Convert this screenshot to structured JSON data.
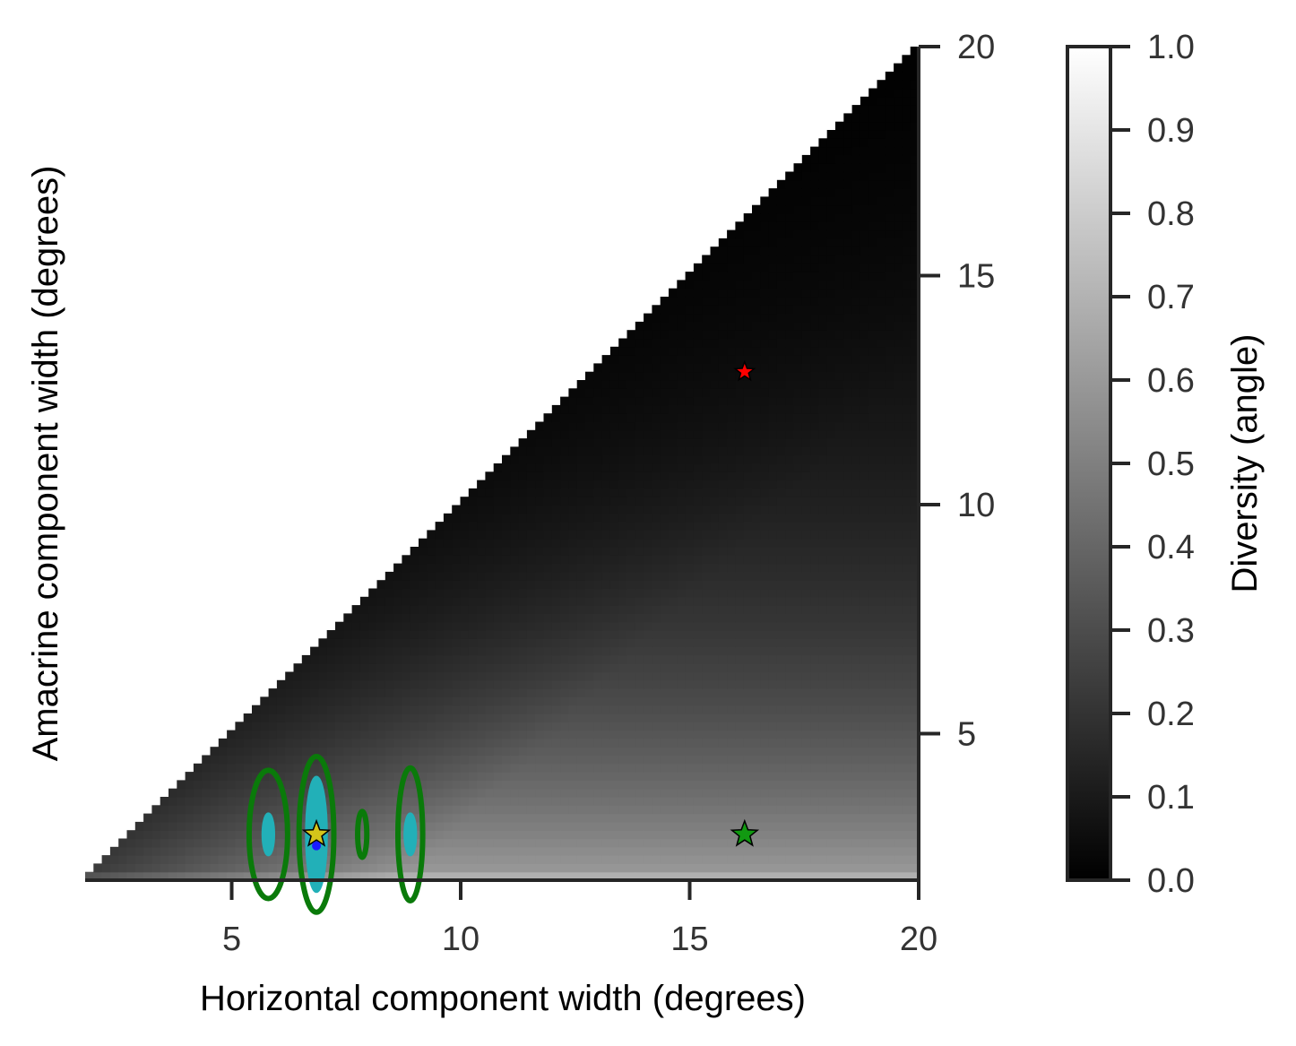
{
  "chart_data": {
    "type": "heatmap",
    "title": "",
    "xlabel": "Horizontal component width (degrees)",
    "ylabel": "Amacrine component width (degrees)",
    "xlim": [
      1.8,
      20
    ],
    "ylim": [
      1.8,
      20
    ],
    "xticks": [
      5,
      10,
      15,
      20
    ],
    "yticks": [
      5,
      10,
      15,
      20
    ],
    "y_axis_side": "right",
    "region": "lower-right triangle (amacrine width <= horizontal width)",
    "colormap": "gray",
    "colorbar": {
      "label": "Diversity (angle)",
      "min": 0.0,
      "max": 1.0,
      "ticks": [
        "0.0",
        "0.1",
        "0.2",
        "0.3",
        "0.4",
        "0.5",
        "0.6",
        "0.7",
        "0.8",
        "0.9",
        "1.0"
      ]
    },
    "grid": false,
    "contours": [
      {
        "color": "#0a7a0a",
        "cx": 5.8,
        "cy": 2.8,
        "rx": 0.42,
        "ry": 1.4
      },
      {
        "color": "#0a7a0a",
        "cx": 6.85,
        "cy": 2.8,
        "rx": 0.38,
        "ry": 1.7
      },
      {
        "color": "#0a7a0a",
        "cx": 7.85,
        "cy": 2.8,
        "rx": 0.1,
        "ry": 0.5
      },
      {
        "color": "#0a7a0a",
        "cx": 8.9,
        "cy": 2.8,
        "rx": 0.27,
        "ry": 1.45
      },
      {
        "color": "#22b0b8",
        "cx": 5.8,
        "cy": 2.8,
        "rx": 0.12,
        "ry": 0.45
      },
      {
        "color": "#22b0b8",
        "cx": 6.85,
        "cy": 2.8,
        "rx": 0.22,
        "ry": 1.25
      },
      {
        "color": "#22b0b8",
        "cx": 8.9,
        "cy": 2.8,
        "rx": 0.12,
        "ry": 0.45
      }
    ],
    "markers": [
      {
        "x": 16.2,
        "y": 12.9,
        "color": "#ff0000",
        "shape": "star",
        "size": "small"
      },
      {
        "x": 16.2,
        "y": 2.8,
        "color": "#119911",
        "shape": "star",
        "size": "large"
      },
      {
        "x": 6.85,
        "y": 2.8,
        "color": "#d4c41a",
        "shape": "star",
        "size": "large"
      },
      {
        "x": 6.85,
        "y": 2.55,
        "color": "#1a1aff",
        "shape": "dot",
        "size": "small"
      }
    ]
  }
}
